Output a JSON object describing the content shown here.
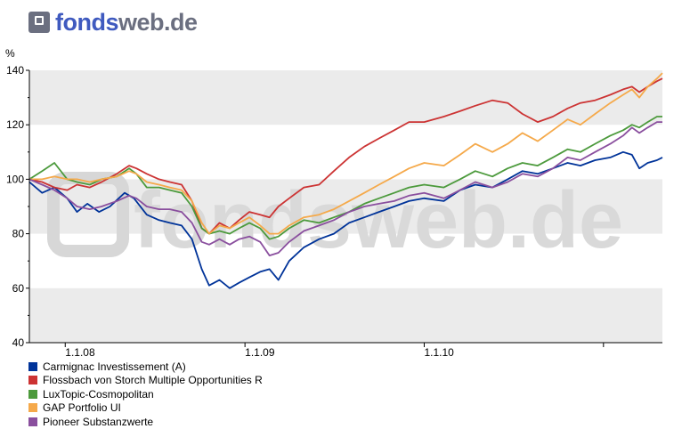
{
  "brand": {
    "part1": "fonds",
    "part2": "web.de",
    "watermark": "fondsweb.de"
  },
  "chart_data": {
    "type": "line",
    "title": "",
    "xlabel": "",
    "ylabel": "%",
    "ylim": [
      40,
      140
    ],
    "yticks": [
      40,
      60,
      80,
      100,
      120,
      140
    ],
    "xlim": [
      "2007-10-20",
      "2011-05-01"
    ],
    "xticks": [
      {
        "date": "2008-01-01",
        "label": "1.1.08"
      },
      {
        "date": "2009-01-01",
        "label": "1.1.09"
      },
      {
        "date": "2010-01-01",
        "label": "1.1.10"
      },
      {
        "date": "2011-01-01",
        "label": ""
      }
    ],
    "grid": "alternating-bands",
    "legend_position": "bottom",
    "series": [
      {
        "name": "Carmignac Investissement (A)",
        "color": "#003399",
        "points": [
          [
            "2007-10-20",
            99
          ],
          [
            "2007-11-15",
            95
          ],
          [
            "2007-12-10",
            97
          ],
          [
            "2008-01-05",
            93
          ],
          [
            "2008-01-25",
            88
          ],
          [
            "2008-02-15",
            91
          ],
          [
            "2008-03-10",
            88
          ],
          [
            "2008-04-01",
            90
          ],
          [
            "2008-05-01",
            95
          ],
          [
            "2008-05-20",
            93
          ],
          [
            "2008-06-15",
            87
          ],
          [
            "2008-07-10",
            85
          ],
          [
            "2008-08-01",
            84
          ],
          [
            "2008-08-25",
            83
          ],
          [
            "2008-09-15",
            78
          ],
          [
            "2008-10-05",
            67
          ],
          [
            "2008-10-20",
            61
          ],
          [
            "2008-11-10",
            63
          ],
          [
            "2008-12-01",
            60
          ],
          [
            "2008-12-20",
            62
          ],
          [
            "2009-01-10",
            64
          ],
          [
            "2009-02-01",
            66
          ],
          [
            "2009-02-20",
            67
          ],
          [
            "2009-03-10",
            63
          ],
          [
            "2009-04-01",
            70
          ],
          [
            "2009-05-01",
            75
          ],
          [
            "2009-06-01",
            78
          ],
          [
            "2009-07-01",
            80
          ],
          [
            "2009-08-01",
            84
          ],
          [
            "2009-09-01",
            86
          ],
          [
            "2009-10-01",
            88
          ],
          [
            "2009-11-01",
            90
          ],
          [
            "2009-12-01",
            92
          ],
          [
            "2010-01-01",
            93
          ],
          [
            "2010-02-10",
            92
          ],
          [
            "2010-03-15",
            96
          ],
          [
            "2010-04-15",
            98
          ],
          [
            "2010-05-20",
            97
          ],
          [
            "2010-06-20",
            100
          ],
          [
            "2010-07-20",
            103
          ],
          [
            "2010-08-20",
            102
          ],
          [
            "2010-09-20",
            104
          ],
          [
            "2010-10-20",
            106
          ],
          [
            "2010-11-15",
            105
          ],
          [
            "2010-12-15",
            107
          ],
          [
            "2011-01-15",
            108
          ],
          [
            "2011-02-10",
            110
          ],
          [
            "2011-02-28",
            109
          ],
          [
            "2011-03-15",
            104
          ],
          [
            "2011-04-01",
            106
          ],
          [
            "2011-04-20",
            107
          ],
          [
            "2011-05-01",
            108
          ]
        ]
      },
      {
        "name": "Flossbach von Storch Multiple Opportunities  R",
        "color": "#cc3333",
        "points": [
          [
            "2007-10-20",
            100
          ],
          [
            "2007-11-15",
            99
          ],
          [
            "2007-12-10",
            97
          ],
          [
            "2008-01-05",
            96
          ],
          [
            "2008-01-25",
            98
          ],
          [
            "2008-02-20",
            97
          ],
          [
            "2008-03-15",
            99
          ],
          [
            "2008-04-15",
            102
          ],
          [
            "2008-05-10",
            105
          ],
          [
            "2008-05-25",
            104
          ],
          [
            "2008-06-15",
            102
          ],
          [
            "2008-07-10",
            100
          ],
          [
            "2008-08-01",
            99
          ],
          [
            "2008-08-25",
            98
          ],
          [
            "2008-09-15",
            92
          ],
          [
            "2008-10-05",
            82
          ],
          [
            "2008-10-20",
            80
          ],
          [
            "2008-11-10",
            84
          ],
          [
            "2008-12-01",
            82
          ],
          [
            "2008-12-20",
            85
          ],
          [
            "2009-01-10",
            88
          ],
          [
            "2009-02-01",
            87
          ],
          [
            "2009-02-20",
            86
          ],
          [
            "2009-03-10",
            90
          ],
          [
            "2009-04-01",
            93
          ],
          [
            "2009-05-01",
            97
          ],
          [
            "2009-06-01",
            98
          ],
          [
            "2009-07-01",
            103
          ],
          [
            "2009-08-01",
            108
          ],
          [
            "2009-09-01",
            112
          ],
          [
            "2009-10-01",
            115
          ],
          [
            "2009-11-01",
            118
          ],
          [
            "2009-12-01",
            121
          ],
          [
            "2010-01-01",
            121
          ],
          [
            "2010-02-10",
            123
          ],
          [
            "2010-03-15",
            125
          ],
          [
            "2010-04-15",
            127
          ],
          [
            "2010-05-20",
            129
          ],
          [
            "2010-06-20",
            128
          ],
          [
            "2010-07-20",
            124
          ],
          [
            "2010-08-20",
            121
          ],
          [
            "2010-09-20",
            123
          ],
          [
            "2010-10-20",
            126
          ],
          [
            "2010-11-15",
            128
          ],
          [
            "2010-12-15",
            129
          ],
          [
            "2011-01-15",
            131
          ],
          [
            "2011-02-10",
            133
          ],
          [
            "2011-02-28",
            134
          ],
          [
            "2011-03-15",
            132
          ],
          [
            "2011-04-01",
            134
          ],
          [
            "2011-04-20",
            136
          ],
          [
            "2011-05-01",
            137
          ]
        ]
      },
      {
        "name": "LuxTopic-Cosmopolitan",
        "color": "#4c9a3c",
        "points": [
          [
            "2007-10-20",
            100
          ],
          [
            "2007-11-15",
            103
          ],
          [
            "2007-12-10",
            106
          ],
          [
            "2008-01-05",
            100
          ],
          [
            "2008-01-25",
            99
          ],
          [
            "2008-02-20",
            98
          ],
          [
            "2008-03-15",
            100
          ],
          [
            "2008-04-15",
            101
          ],
          [
            "2008-05-10",
            104
          ],
          [
            "2008-05-25",
            102
          ],
          [
            "2008-06-15",
            97
          ],
          [
            "2008-07-10",
            97
          ],
          [
            "2008-08-01",
            96
          ],
          [
            "2008-08-25",
            95
          ],
          [
            "2008-09-15",
            90
          ],
          [
            "2008-10-05",
            82
          ],
          [
            "2008-10-20",
            80
          ],
          [
            "2008-11-10",
            81
          ],
          [
            "2008-12-01",
            80
          ],
          [
            "2008-12-20",
            82
          ],
          [
            "2009-01-10",
            84
          ],
          [
            "2009-02-01",
            82
          ],
          [
            "2009-02-20",
            78
          ],
          [
            "2009-03-10",
            79
          ],
          [
            "2009-04-01",
            82
          ],
          [
            "2009-05-01",
            85
          ],
          [
            "2009-06-01",
            84
          ],
          [
            "2009-07-01",
            86
          ],
          [
            "2009-08-01",
            88
          ],
          [
            "2009-09-01",
            91
          ],
          [
            "2009-10-01",
            93
          ],
          [
            "2009-11-01",
            95
          ],
          [
            "2009-12-01",
            97
          ],
          [
            "2010-01-01",
            98
          ],
          [
            "2010-02-10",
            97
          ],
          [
            "2010-03-15",
            100
          ],
          [
            "2010-04-15",
            103
          ],
          [
            "2010-05-20",
            101
          ],
          [
            "2010-06-20",
            104
          ],
          [
            "2010-07-20",
            106
          ],
          [
            "2010-08-20",
            105
          ],
          [
            "2010-09-20",
            108
          ],
          [
            "2010-10-20",
            111
          ],
          [
            "2010-11-15",
            110
          ],
          [
            "2010-12-15",
            113
          ],
          [
            "2011-01-15",
            116
          ],
          [
            "2011-02-10",
            118
          ],
          [
            "2011-02-28",
            120
          ],
          [
            "2011-03-15",
            119
          ],
          [
            "2011-04-01",
            121
          ],
          [
            "2011-04-20",
            123
          ],
          [
            "2011-05-01",
            123
          ]
        ]
      },
      {
        "name": "GAP Portfolio UI",
        "color": "#f5a94a",
        "points": [
          [
            "2007-10-20",
            100
          ],
          [
            "2007-11-15",
            100
          ],
          [
            "2007-12-10",
            101
          ],
          [
            "2008-01-05",
            100
          ],
          [
            "2008-01-25",
            100
          ],
          [
            "2008-02-20",
            99
          ],
          [
            "2008-03-15",
            100
          ],
          [
            "2008-04-15",
            101
          ],
          [
            "2008-05-10",
            103
          ],
          [
            "2008-05-25",
            102
          ],
          [
            "2008-06-15",
            99
          ],
          [
            "2008-07-10",
            98
          ],
          [
            "2008-08-01",
            97
          ],
          [
            "2008-08-25",
            96
          ],
          [
            "2008-09-15",
            92
          ],
          [
            "2008-10-05",
            84
          ],
          [
            "2008-10-20",
            80
          ],
          [
            "2008-11-10",
            83
          ],
          [
            "2008-12-01",
            82
          ],
          [
            "2008-12-20",
            84
          ],
          [
            "2009-01-10",
            86
          ],
          [
            "2009-02-01",
            83
          ],
          [
            "2009-02-20",
            80
          ],
          [
            "2009-03-10",
            80
          ],
          [
            "2009-04-01",
            83
          ],
          [
            "2009-05-01",
            86
          ],
          [
            "2009-06-01",
            87
          ],
          [
            "2009-07-01",
            89
          ],
          [
            "2009-08-01",
            92
          ],
          [
            "2009-09-01",
            95
          ],
          [
            "2009-10-01",
            98
          ],
          [
            "2009-11-01",
            101
          ],
          [
            "2009-12-01",
            104
          ],
          [
            "2010-01-01",
            106
          ],
          [
            "2010-02-10",
            105
          ],
          [
            "2010-03-15",
            109
          ],
          [
            "2010-04-15",
            113
          ],
          [
            "2010-05-20",
            110
          ],
          [
            "2010-06-20",
            113
          ],
          [
            "2010-07-20",
            117
          ],
          [
            "2010-08-20",
            114
          ],
          [
            "2010-09-20",
            118
          ],
          [
            "2010-10-20",
            122
          ],
          [
            "2010-11-15",
            120
          ],
          [
            "2010-12-15",
            124
          ],
          [
            "2011-01-15",
            128
          ],
          [
            "2011-02-10",
            131
          ],
          [
            "2011-02-28",
            133
          ],
          [
            "2011-03-15",
            130
          ],
          [
            "2011-04-01",
            134
          ],
          [
            "2011-04-20",
            137
          ],
          [
            "2011-05-01",
            139
          ]
        ]
      },
      {
        "name": "Pioneer Substanzwerte",
        "color": "#8a4f9e",
        "points": [
          [
            "2007-10-20",
            100
          ],
          [
            "2007-11-15",
            98
          ],
          [
            "2007-12-10",
            96
          ],
          [
            "2008-01-05",
            93
          ],
          [
            "2008-01-25",
            90
          ],
          [
            "2008-02-20",
            89
          ],
          [
            "2008-03-15",
            90
          ],
          [
            "2008-04-15",
            92
          ],
          [
            "2008-05-10",
            94
          ],
          [
            "2008-05-25",
            93
          ],
          [
            "2008-06-15",
            90
          ],
          [
            "2008-07-10",
            89
          ],
          [
            "2008-08-01",
            89
          ],
          [
            "2008-08-25",
            88
          ],
          [
            "2008-09-15",
            84
          ],
          [
            "2008-10-05",
            77
          ],
          [
            "2008-10-20",
            76
          ],
          [
            "2008-11-10",
            78
          ],
          [
            "2008-12-01",
            76
          ],
          [
            "2008-12-20",
            78
          ],
          [
            "2009-01-10",
            79
          ],
          [
            "2009-02-01",
            77
          ],
          [
            "2009-02-20",
            72
          ],
          [
            "2009-03-10",
            73
          ],
          [
            "2009-04-01",
            77
          ],
          [
            "2009-05-01",
            81
          ],
          [
            "2009-06-01",
            83
          ],
          [
            "2009-07-01",
            85
          ],
          [
            "2009-08-01",
            88
          ],
          [
            "2009-09-01",
            90
          ],
          [
            "2009-10-01",
            91
          ],
          [
            "2009-11-01",
            92
          ],
          [
            "2009-12-01",
            94
          ],
          [
            "2010-01-01",
            95
          ],
          [
            "2010-02-10",
            93
          ],
          [
            "2010-03-15",
            96
          ],
          [
            "2010-04-15",
            99
          ],
          [
            "2010-05-20",
            97
          ],
          [
            "2010-06-20",
            99
          ],
          [
            "2010-07-20",
            102
          ],
          [
            "2010-08-20",
            101
          ],
          [
            "2010-09-20",
            104
          ],
          [
            "2010-10-20",
            108
          ],
          [
            "2010-11-15",
            107
          ],
          [
            "2010-12-15",
            110
          ],
          [
            "2011-01-15",
            113
          ],
          [
            "2011-02-10",
            116
          ],
          [
            "2011-02-28",
            119
          ],
          [
            "2011-03-15",
            117
          ],
          [
            "2011-04-01",
            119
          ],
          [
            "2011-04-20",
            121
          ],
          [
            "2011-05-01",
            121
          ]
        ]
      }
    ]
  }
}
